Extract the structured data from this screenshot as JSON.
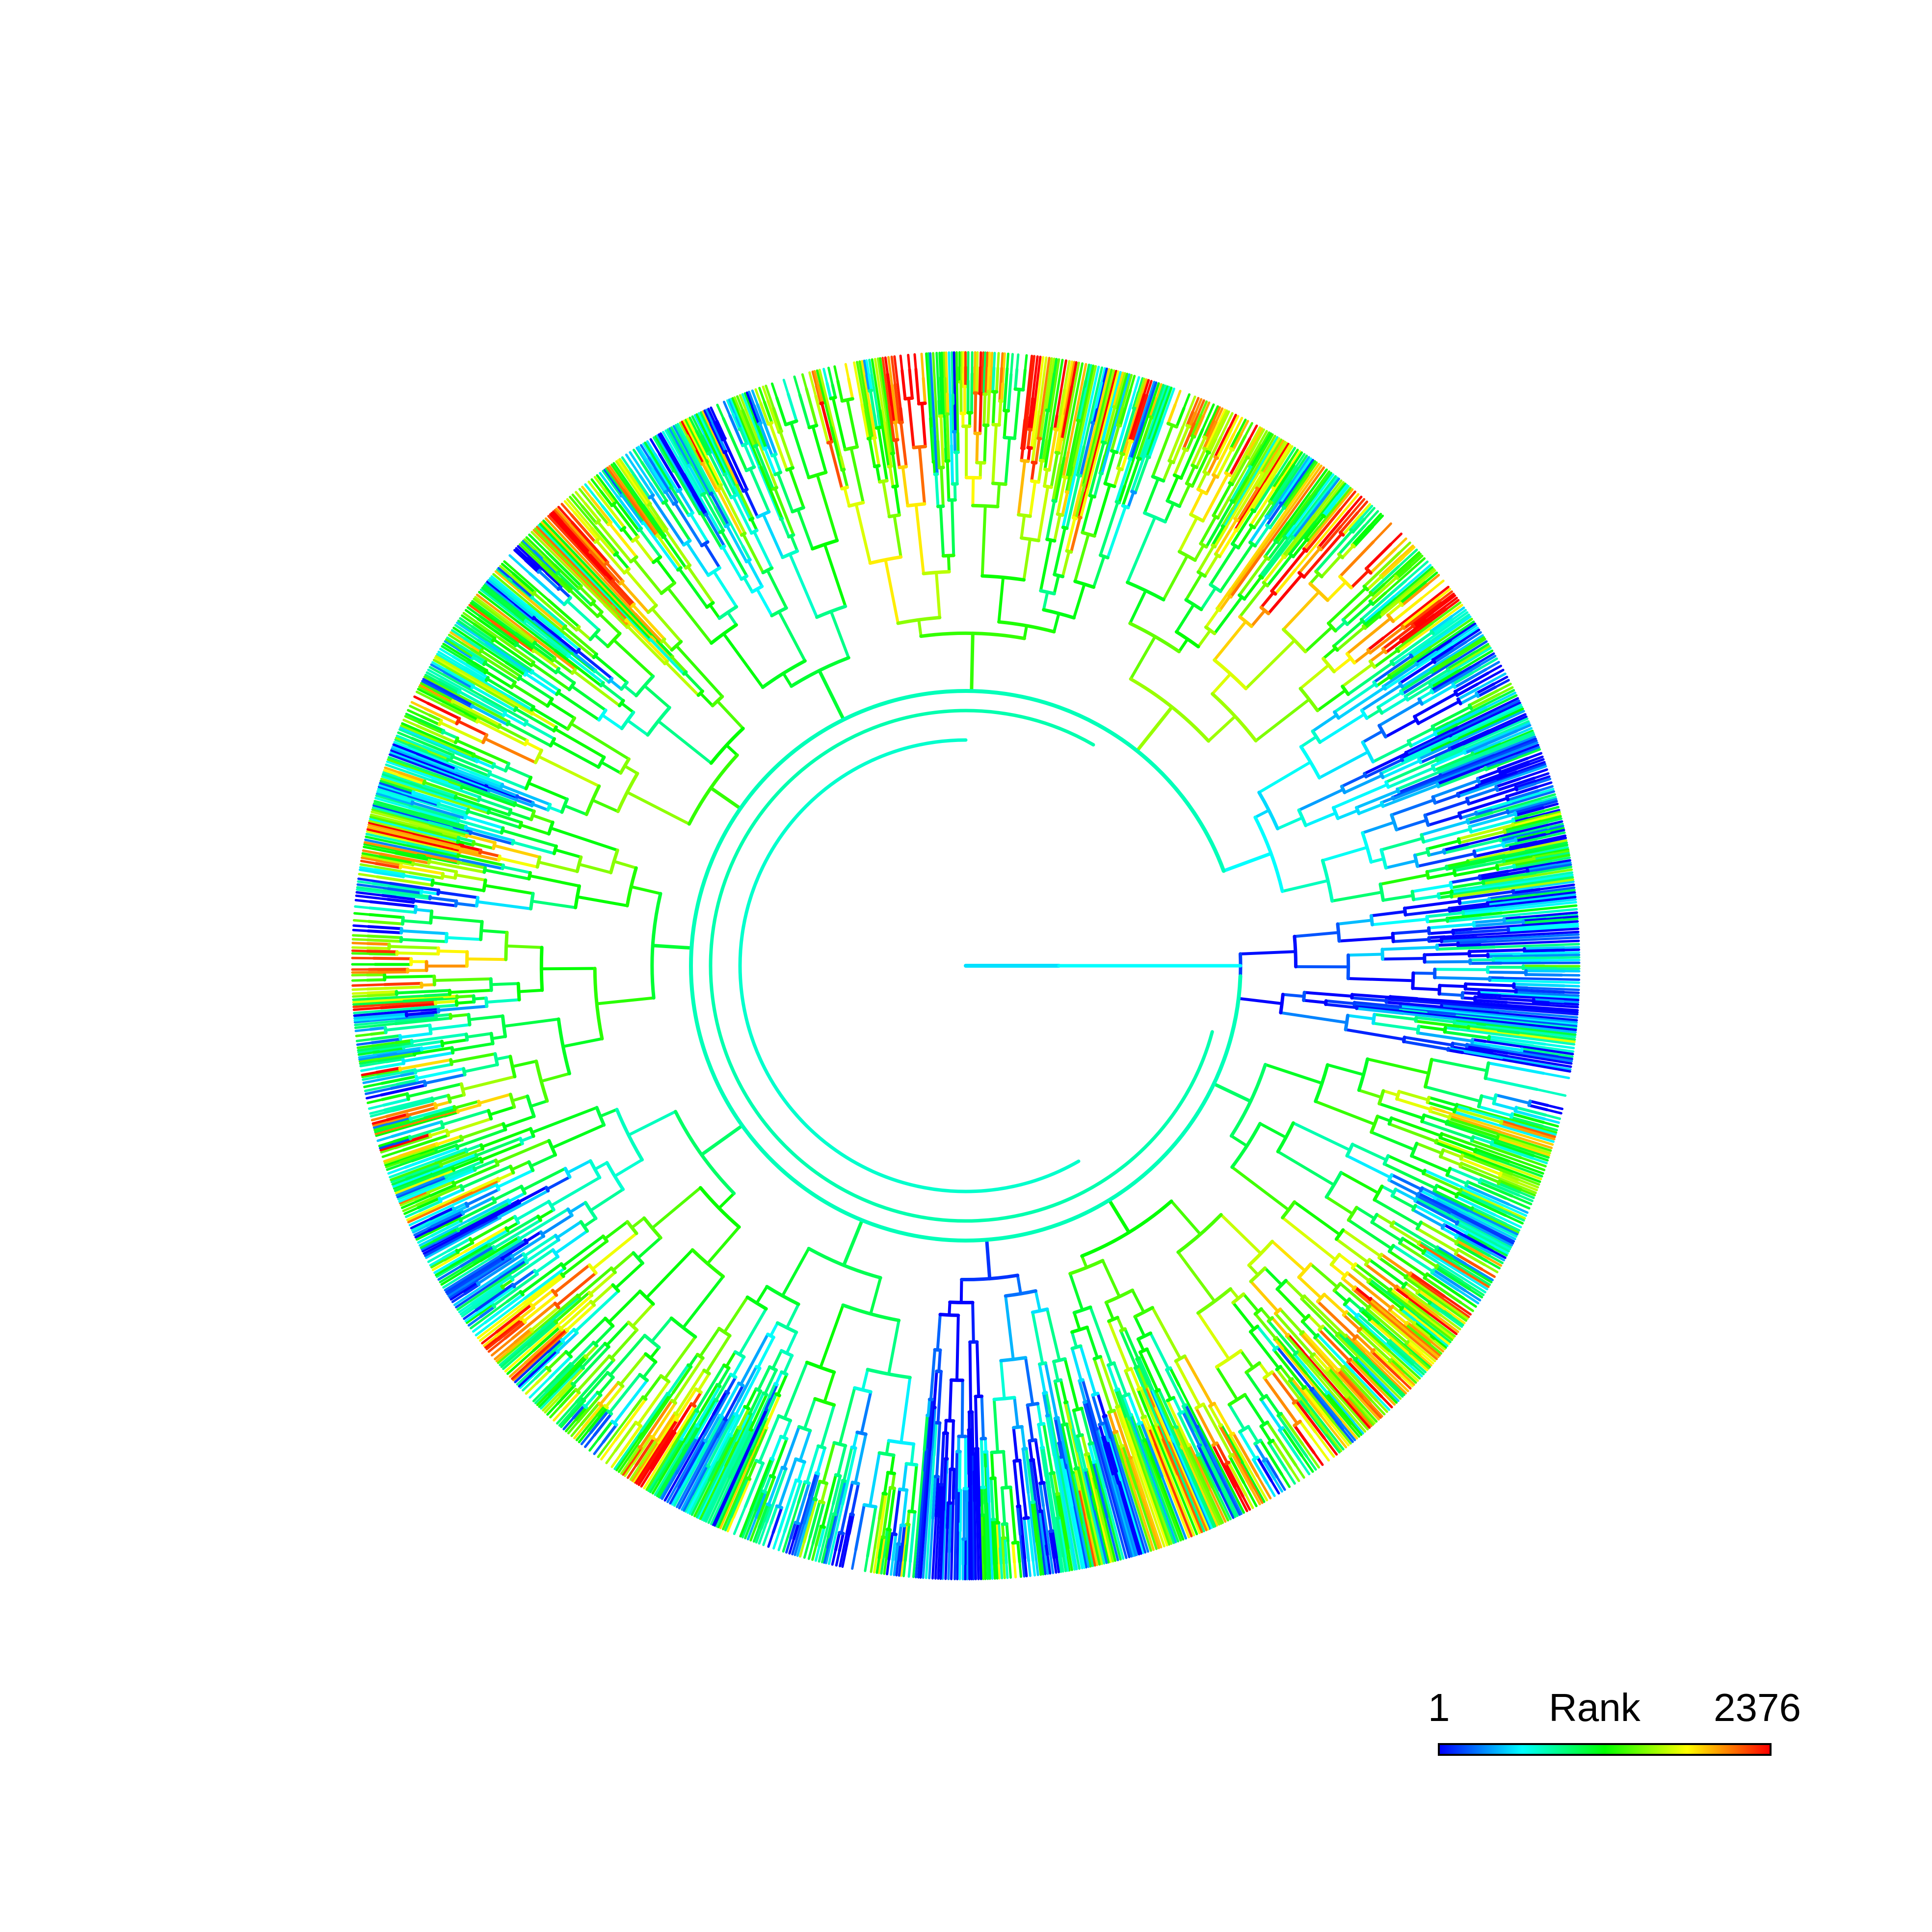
{
  "figure": {
    "type": "circular-phylogenetic-tree",
    "branch_color_encoding": "Rank"
  },
  "legend": {
    "min_label": "1",
    "title": "Rank",
    "max_label": "2376",
    "rank_min": 1,
    "rank_max": 2376,
    "colormap": [
      "#0000ff",
      "#0080ff",
      "#00ffff",
      "#00ff80",
      "#00ff00",
      "#80ff00",
      "#ffff00",
      "#ff8000",
      "#ff0000"
    ]
  }
}
